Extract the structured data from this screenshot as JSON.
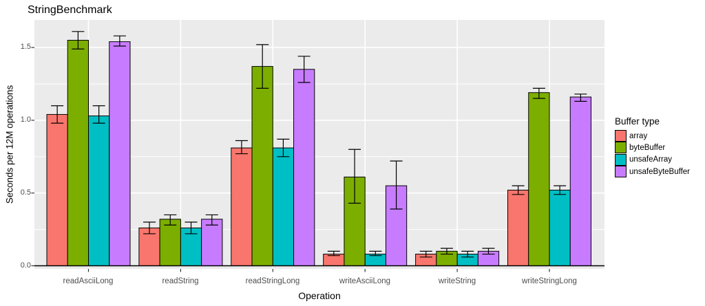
{
  "title": "StringBenchmark",
  "chart_data": {
    "type": "bar",
    "title": "StringBenchmark",
    "xlabel": "Operation",
    "ylabel": "Seconds per 12M operations",
    "legend_title": "Buffer type",
    "legend_position": "right",
    "categories": [
      "readAsciiLong",
      "readString",
      "readStringLong",
      "writeAsciiLong",
      "writeString",
      "writeStringLong"
    ],
    "series": [
      {
        "name": "array",
        "color": "#F8766D",
        "values": [
          1.04,
          0.26,
          0.81,
          0.08,
          0.08,
          0.52
        ],
        "error_low": [
          0.98,
          0.22,
          0.77,
          0.07,
          0.06,
          0.49
        ],
        "error_high": [
          1.1,
          0.3,
          0.86,
          0.1,
          0.1,
          0.55
        ]
      },
      {
        "name": "byteBuffer",
        "color": "#7CAE00",
        "values": [
          1.55,
          0.32,
          1.37,
          0.61,
          0.1,
          1.19
        ],
        "error_low": [
          1.49,
          0.28,
          1.22,
          0.43,
          0.08,
          1.15
        ],
        "error_high": [
          1.61,
          0.35,
          1.52,
          0.8,
          0.12,
          1.22
        ]
      },
      {
        "name": "unsafeArray",
        "color": "#00BFC4",
        "values": [
          1.03,
          0.26,
          0.81,
          0.08,
          0.08,
          0.52
        ],
        "error_low": [
          0.98,
          0.22,
          0.75,
          0.07,
          0.06,
          0.49
        ],
        "error_high": [
          1.1,
          0.3,
          0.87,
          0.1,
          0.1,
          0.55
        ]
      },
      {
        "name": "unsafeByteBuffer",
        "color": "#C77CFF",
        "values": [
          1.54,
          0.32,
          1.35,
          0.55,
          0.1,
          1.16
        ],
        "error_low": [
          1.51,
          0.28,
          1.26,
          0.39,
          0.08,
          1.13
        ],
        "error_high": [
          1.58,
          0.35,
          1.44,
          0.72,
          0.12,
          1.18
        ]
      }
    ],
    "y_ticks": [
      0.0,
      0.5,
      1.0,
      1.5
    ],
    "y_tick_labels": [
      "0.0",
      "0.5",
      "1.0",
      "1.5"
    ],
    "ylim": [
      -0.02,
      1.69
    ],
    "grid": "white major/minor horizontal lines every 0.25, vertical major at category centers",
    "panel_background": "#EBEBEB",
    "gridline_color": "#FFFFFF",
    "bar_outline_color": "#000000",
    "tick_color": "#333333",
    "error_bars": true
  }
}
